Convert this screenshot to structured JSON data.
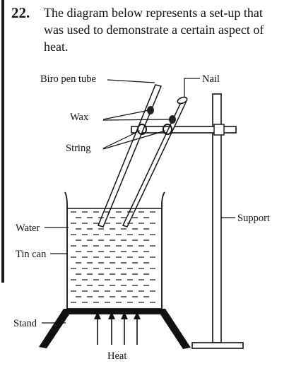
{
  "question": {
    "number": "22.",
    "lines": [
      "The diagram below represents a set-up that",
      "was used to demonstrate a certain aspect of",
      "heat."
    ]
  },
  "labels": {
    "biro_pen_tube": "Biro pen tube",
    "nail": "Nail",
    "wax": "Wax",
    "string": "String",
    "water": "Water",
    "tin_can": "Tin can",
    "support": "Support",
    "stand": "Stand",
    "heat": "Heat"
  }
}
